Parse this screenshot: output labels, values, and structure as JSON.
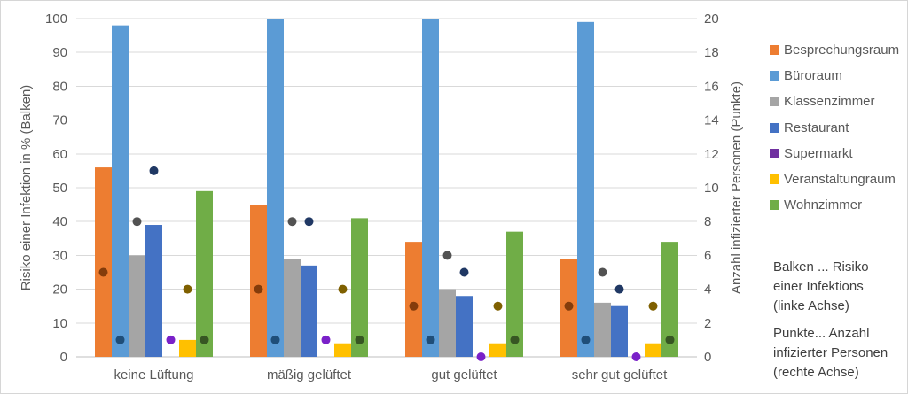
{
  "chart_data": {
    "type": "bar+scatter",
    "categories": [
      "keine Lüftung",
      "mäßig gelüftet",
      "gut gelüftet",
      "sehr gut gelüftet"
    ],
    "bar_series": [
      {
        "name": "Besprechungsraum",
        "color": "#ED7D31",
        "values": [
          56,
          45,
          34,
          29
        ]
      },
      {
        "name": "Büroraum",
        "color": "#5B9BD5",
        "values": [
          98,
          100,
          100,
          99
        ]
      },
      {
        "name": "Klassenzimmer",
        "color": "#A5A5A5",
        "values": [
          30,
          29,
          20,
          16
        ]
      },
      {
        "name": "Restaurant",
        "color": "#4472C4",
        "values": [
          39,
          27,
          18,
          15
        ]
      },
      {
        "name": "Supermarkt",
        "color": "#7030A0",
        "values": [
          0,
          0,
          0,
          0
        ]
      },
      {
        "name": "Veranstaltungraum",
        "color": "#FFC000",
        "values": [
          5,
          4,
          4,
          4
        ]
      },
      {
        "name": "Wohnzimmer",
        "color": "#70AD47",
        "values": [
          49,
          41,
          37,
          34
        ]
      }
    ],
    "point_series": [
      {
        "name": "Besprechungsraum",
        "color": "#843C0B",
        "values": [
          5,
          4,
          3,
          3
        ]
      },
      {
        "name": "Büroraum",
        "color": "#1F4E79",
        "values": [
          1,
          1,
          1,
          1
        ]
      },
      {
        "name": "Klassenzimmer",
        "color": "#525252",
        "values": [
          8,
          8,
          6,
          5
        ]
      },
      {
        "name": "Restaurant",
        "color": "#203864",
        "values": [
          11,
          8,
          5,
          4
        ]
      },
      {
        "name": "Supermarkt",
        "color": "#7A21C9",
        "values": [
          1,
          1,
          0,
          0
        ]
      },
      {
        "name": "Veranstaltungraum",
        "color": "#7F6000",
        "values": [
          4,
          4,
          3,
          3
        ]
      },
      {
        "name": "Wohnzimmer",
        "color": "#375623",
        "values": [
          1,
          1,
          1,
          1
        ]
      }
    ],
    "left_axis": {
      "title": "Risiko einer Infektion in % (Balken)",
      "min": 0,
      "max": 100,
      "step": 10
    },
    "right_axis": {
      "title": "Anzahl infizierter Personen (Punkte)",
      "min": 0,
      "max": 20,
      "step": 2
    },
    "legend": [
      "Besprechungsraum",
      "Büroraum",
      "Klassenzimmer",
      "Restaurant",
      "Supermarkt",
      "Veranstaltungraum",
      "Wohnzimmer"
    ],
    "notes": {
      "bars": "Balken ... Risiko\neiner  Infektions\n(linke Achse)",
      "points": "Punkte... Anzahl\ninfizierter Personen\n(rechte Achse)"
    },
    "grid": "horizontal",
    "legend_position": "right"
  }
}
